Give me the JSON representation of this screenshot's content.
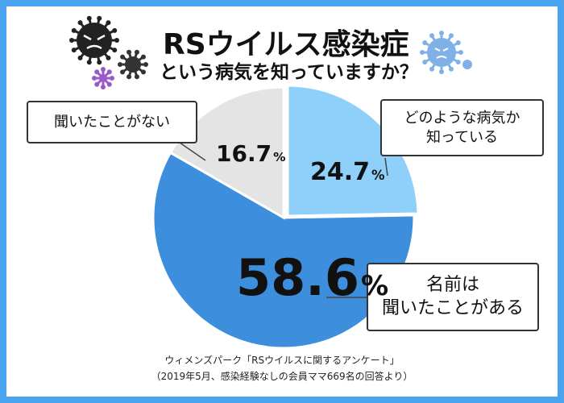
{
  "header": {
    "title": "RSウイルス感染症",
    "subtitle": "という病気を知っていますか？"
  },
  "chart_data": {
    "type": "pie",
    "slices": [
      {
        "label": "どのような病気か知っている",
        "value": 24.7,
        "color": "#8fd0fa"
      },
      {
        "label": "名前は聞いたことがある",
        "value": 58.6,
        "color": "#3d8fde"
      },
      {
        "label": "聞いたことがない",
        "value": 16.7,
        "color": "#e4e4e4"
      }
    ],
    "unit": "%",
    "start": "12 o'clock",
    "direction": "clockwise"
  },
  "labels": {
    "slice_known": {
      "number": "24.7",
      "unit": "%"
    },
    "slice_heard": {
      "number": "58.6",
      "unit": "%"
    },
    "slice_unknown": {
      "number": "16.7",
      "unit": "%"
    }
  },
  "callouts": {
    "unknown": "聞いたことがない",
    "known_line1": "どのような病気か",
    "known_line2": "知っている",
    "heard_line1": "名前は",
    "heard_line2": "聞いたことがある"
  },
  "source": {
    "line1": "ウィメンズパーク「RSウイルスに関するアンケート」",
    "line2": "（2019年5月、感染経験なしの会員ママ669名の回答より）"
  },
  "colors": {
    "frame": "#4aa3ee",
    "virus_dark": "#222222",
    "virus_blue": "#7fb0e6",
    "virus_purple": "#9a58c8"
  }
}
